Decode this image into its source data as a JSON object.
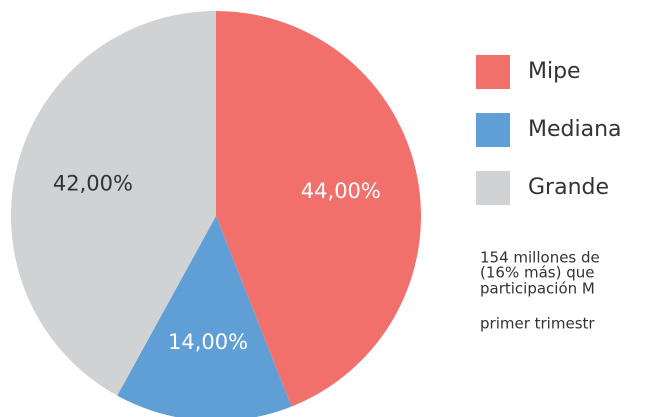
{
  "chart_data": {
    "type": "pie",
    "categories": [
      "Mipe",
      "Mediana",
      "Grande"
    ],
    "values": [
      44,
      14,
      42
    ],
    "value_labels": [
      "44,00%",
      "14,00%",
      "42,00%"
    ],
    "colors": [
      "#f2706b",
      "#5f9fd6",
      "#d1d2d4"
    ],
    "label_colors": [
      "#ffffff",
      "#ffffff",
      "#333333"
    ],
    "notes": [
      "154 millones de",
      "(16% más) que",
      "participación M",
      "primer trimestr"
    ]
  }
}
